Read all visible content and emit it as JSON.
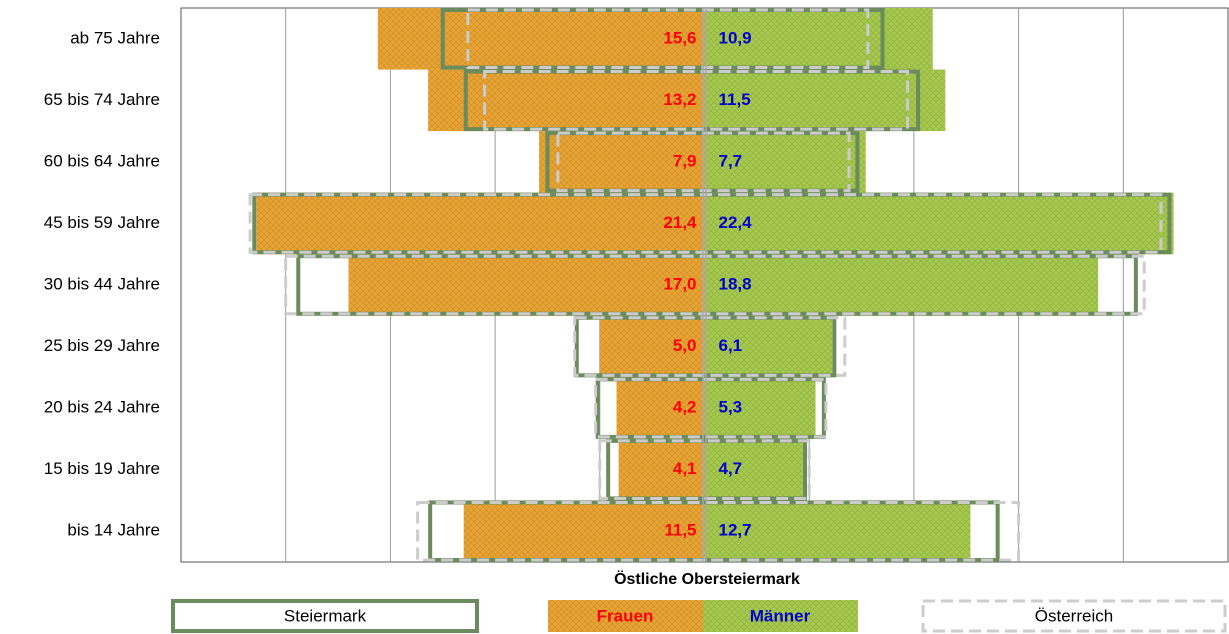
{
  "chart_data": {
    "type": "pyramid",
    "categories": [
      "ab 75 Jahre",
      "65 bis 74 Jahre",
      "60 bis 64 Jahre",
      "45 bis 59 Jahre",
      "30 bis 44 Jahre",
      "25 bis 29 Jahre",
      "20 bis 24 Jahre",
      "15 bis 19 Jahre",
      "bis 14 Jahre"
    ],
    "legend_title": "Östliche Obersteiermark",
    "series": [
      {
        "name": "Frauen",
        "color": "#e8a62c",
        "label_color": "#ff0000",
        "values": [
          15.6,
          13.2,
          7.9,
          21.4,
          17.0,
          5.0,
          4.2,
          4.1,
          11.5
        ],
        "value_labels": [
          "15,6",
          "13,2",
          "7,9",
          "21,4",
          "17,0",
          "5,0",
          "4,2",
          "4,1",
          "11,5"
        ]
      },
      {
        "name": "Männer",
        "color": "#a9c84e",
        "label_color": "#0000cc",
        "values": [
          10.9,
          11.5,
          7.7,
          22.4,
          18.8,
          6.1,
          5.3,
          4.7,
          12.7
        ],
        "value_labels": [
          "10,9",
          "11,5",
          "7,7",
          "22,4",
          "18,8",
          "6,1",
          "5,3",
          "4,7",
          "12,7"
        ]
      }
    ],
    "reference": [
      {
        "name": "Steiermark",
        "color": "#6b8b5c",
        "style": "solid",
        "frauen": [
          12.5,
          11.4,
          7.5,
          21.5,
          19.4,
          6.1,
          5.1,
          4.6,
          13.1
        ],
        "maenner": [
          8.5,
          10.2,
          7.3,
          22.2,
          20.6,
          6.2,
          5.7,
          4.8,
          14.0
        ]
      },
      {
        "name": "Österreich",
        "color": "#cccccc",
        "style": "dashed",
        "frauen": [
          11.3,
          10.5,
          7.0,
          21.7,
          20.0,
          6.2,
          5.2,
          5.0,
          13.7
        ],
        "maenner": [
          7.8,
          9.7,
          6.9,
          21.8,
          21.0,
          6.7,
          5.8,
          5.0,
          15.0
        ]
      }
    ],
    "xlim": [
      -25,
      25
    ],
    "xgrid": [
      -20,
      -15,
      -10,
      -5,
      0,
      5,
      10,
      15,
      20
    ],
    "grid": true
  }
}
